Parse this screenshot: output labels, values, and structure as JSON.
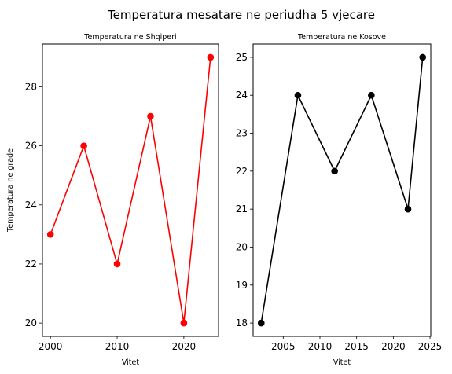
{
  "figure": {
    "suptitle": "Temperatura mesatare ne periudha 5 vjecare"
  },
  "chart_data": [
    {
      "type": "line",
      "title": "Temperatura ne Shqiperi",
      "xlabel": "Vitet",
      "ylabel": "Temperatura ne grade",
      "x": [
        2000,
        2005,
        2010,
        2015,
        2020,
        2024
      ],
      "series": [
        {
          "values": [
            23,
            26,
            22,
            27,
            20,
            29
          ],
          "color": "#ff0000"
        }
      ],
      "xticks": [
        2000,
        2010,
        2020
      ],
      "yticks": [
        20,
        22,
        24,
        26,
        28
      ],
      "xlim": [
        1998.8,
        2025.2
      ],
      "ylim": [
        19.55,
        29.45
      ],
      "marker": "circle",
      "grid": false
    },
    {
      "type": "line",
      "title": "Temperatura ne Kosove",
      "xlabel": "Vitet",
      "ylabel": "",
      "x": [
        2002,
        2007,
        2012,
        2017,
        2022,
        2024
      ],
      "series": [
        {
          "values": [
            18,
            24,
            22,
            24,
            21,
            25
          ],
          "color": "#000000"
        }
      ],
      "xticks": [
        2005,
        2010,
        2015,
        2020,
        2025
      ],
      "yticks": [
        18,
        19,
        20,
        21,
        22,
        23,
        24,
        25
      ],
      "xlim": [
        2000.9,
        2025.1
      ],
      "ylim": [
        17.65,
        25.35
      ],
      "marker": "circle",
      "grid": false
    }
  ]
}
